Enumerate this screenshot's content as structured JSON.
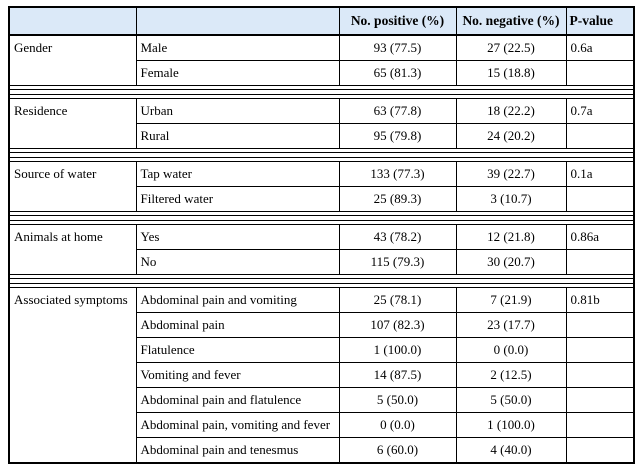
{
  "colors": {
    "header_bg": "#dbe9f8",
    "border": "#000000",
    "page_bg": "#ffffff"
  },
  "table": {
    "columns": [
      "",
      "",
      "No. positive (%)",
      "No. negative (%)",
      "P-value"
    ],
    "sections": [
      {
        "category": "Gender",
        "rows": [
          {
            "label": "Male",
            "positive": "93 (77.5)",
            "negative": "27 (22.5)",
            "p_value": "0.6a"
          },
          {
            "label": "Female",
            "positive": "65 (81.3)",
            "negative": "15 (18.8)",
            "p_value": ""
          }
        ]
      },
      {
        "category": "Residence",
        "rows": [
          {
            "label": "Urban",
            "positive": "63 (77.8)",
            "negative": "18 (22.2)",
            "p_value": "0.7a"
          },
          {
            "label": "Rural",
            "positive": "95 (79.8)",
            "negative": "24 (20.2)",
            "p_value": ""
          }
        ]
      },
      {
        "category": "Source of water",
        "rows": [
          {
            "label": "Tap water",
            "positive": "133 (77.3)",
            "negative": "39 (22.7)",
            "p_value": "0.1a"
          },
          {
            "label": "Filtered water",
            "positive": "25 (89.3)",
            "negative": "3 (10.7)",
            "p_value": ""
          }
        ]
      },
      {
        "category": "Animals at home",
        "rows": [
          {
            "label": "Yes",
            "positive": "43 (78.2)",
            "negative": "12 (21.8)",
            "p_value": "0.86a"
          },
          {
            "label": "No",
            "positive": "115 (79.3)",
            "negative": "30 (20.7)",
            "p_value": ""
          }
        ]
      },
      {
        "category": "Associated symptoms",
        "rows": [
          {
            "label": "Abdominal pain and vomiting",
            "positive": "25 (78.1)",
            "negative": "7 (21.9)",
            "p_value": "0.81b"
          },
          {
            "label": "Abdominal pain",
            "positive": "107 (82.3)",
            "negative": "23 (17.7)",
            "p_value": ""
          },
          {
            "label": "Flatulence",
            "positive": "1 (100.0)",
            "negative": "0 (0.0)",
            "p_value": ""
          },
          {
            "label": "Vomiting and fever",
            "positive": "14 (87.5)",
            "negative": "2 (12.5)",
            "p_value": ""
          },
          {
            "label": "Abdominal pain and flatulence",
            "positive": "5 (50.0)",
            "negative": "5 (50.0)",
            "p_value": ""
          },
          {
            "label": "Abdominal pain, vomiting and fever",
            "positive": "0 (0.0)",
            "negative": "1 (100.0)",
            "p_value": ""
          },
          {
            "label": "Abdominal pain and tenesmus",
            "positive": "6 (60.0)",
            "negative": "4 (40.0)",
            "p_value": ""
          }
        ]
      }
    ]
  }
}
